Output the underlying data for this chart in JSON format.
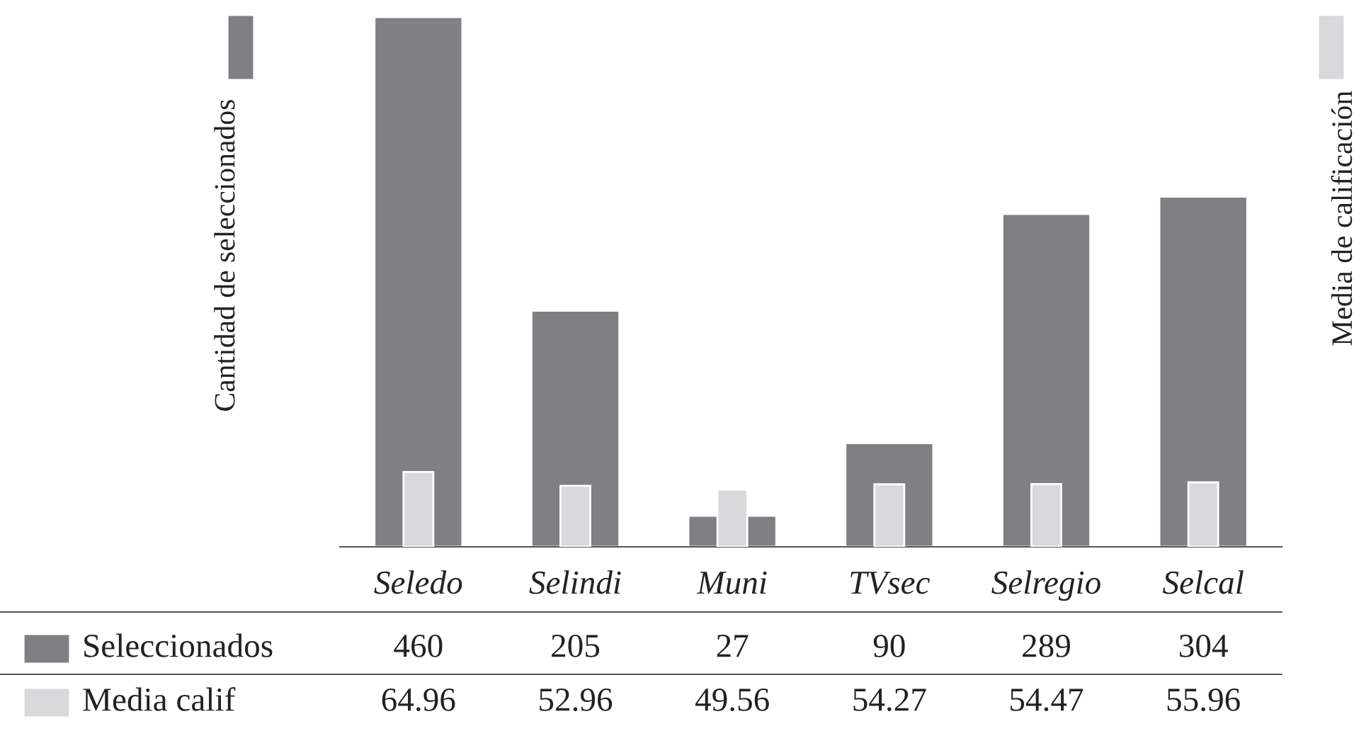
{
  "chart_data": {
    "type": "bar",
    "categories": [
      "Seledo",
      "Selindi",
      "Muni",
      "TVsec",
      "Selregio",
      "Selcal"
    ],
    "series": [
      {
        "name": "Seleccionados",
        "color": "#7f7f84",
        "values": [
          460,
          205,
          27,
          90,
          289,
          304
        ]
      },
      {
        "name": "Media calif",
        "color": "#d9d9db",
        "axis": "y2",
        "values": [
          64.96,
          52.96,
          49.56,
          54.27,
          54.47,
          55.96
        ]
      }
    ],
    "ylabel": "Cantidad de seleccionados",
    "y2label": "Media de calificación",
    "legend": "bottom left",
    "ylim": [
      0,
      460
    ],
    "y2lim": [
      0,
      460
    ],
    "tick_labels": "x",
    "data_labels": true,
    "grid": false
  }
}
